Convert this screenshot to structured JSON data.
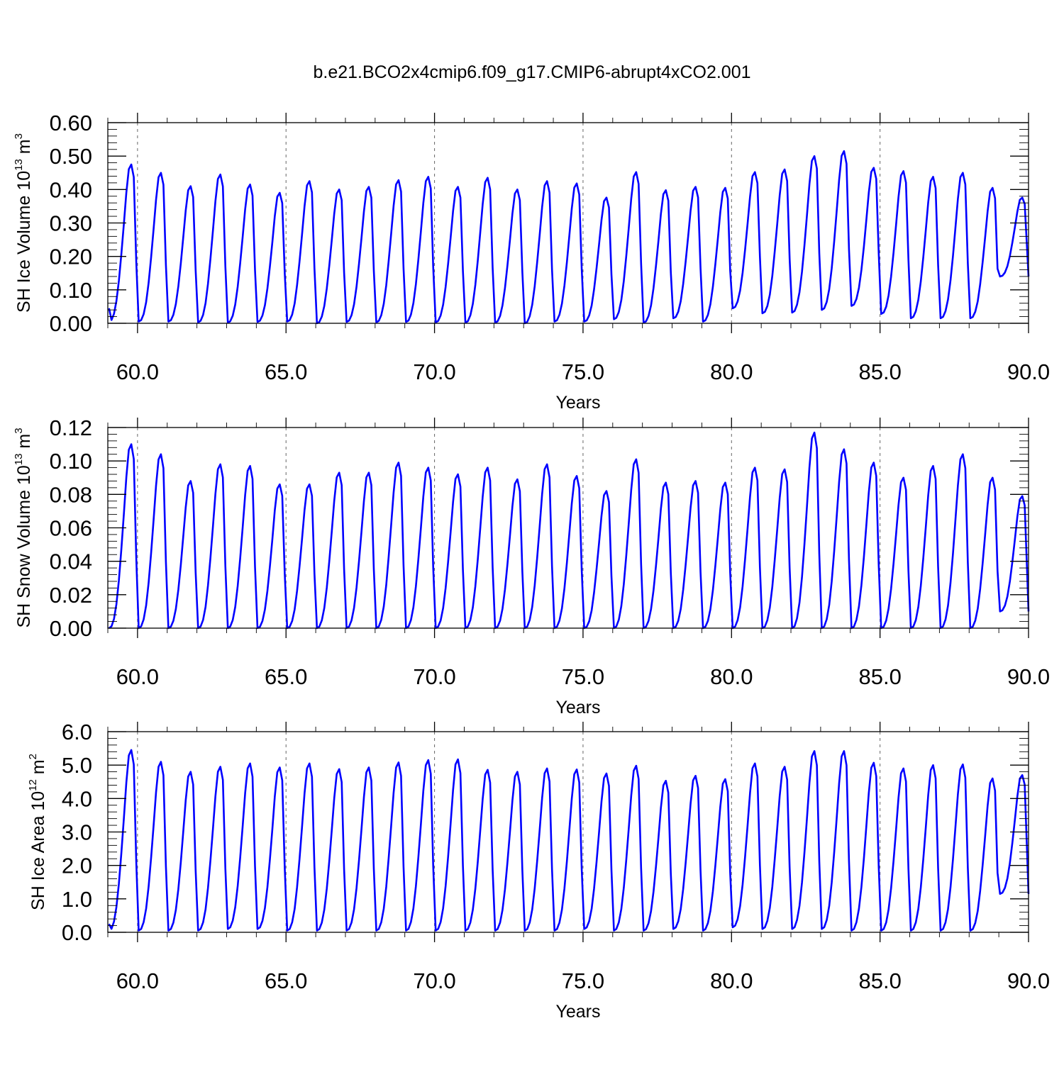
{
  "colors": {
    "series": "#0000ff",
    "axes": "#000000",
    "grid": "#666666"
  },
  "figure": {
    "title": "b.e21.BCO2x4cmip6.f09_g17.CMIP6-abrupt4xCO2.001"
  },
  "chart_data": [
    {
      "type": "line",
      "id": "ice-volume",
      "xlabel": "Years",
      "ylabel_parts": {
        "base": "SH Ice Volume 10",
        "exp1": "13",
        "mid": " m",
        "exp2": "3"
      },
      "xlim": [
        59.0,
        90.0
      ],
      "ylim": [
        0.0,
        0.6
      ],
      "x_ticks": [
        60,
        65,
        70,
        75,
        80,
        85,
        90
      ],
      "x_tick_labels": [
        "60.0",
        "65.0",
        "70.0",
        "75.0",
        "80.0",
        "85.0",
        "90.0"
      ],
      "y_ticks": [
        0.0,
        0.1,
        0.2,
        0.3,
        0.4,
        0.5,
        0.6
      ],
      "y_tick_labels": [
        "0.00",
        "0.10",
        "0.20",
        "0.30",
        "0.40",
        "0.50",
        "0.60"
      ],
      "grid_x": [
        60,
        65,
        70,
        75,
        80,
        85
      ],
      "series": [
        {
          "start_year": 59.04,
          "step_years": 0.08333,
          "annual_max": [
            0.475,
            0.45,
            0.41,
            0.445,
            0.415,
            0.39,
            0.425,
            0.4,
            0.408,
            0.428,
            0.438,
            0.408,
            0.435,
            0.4,
            0.425,
            0.418,
            0.376,
            0.452,
            0.398,
            0.408,
            0.405,
            0.452,
            0.46,
            0.5,
            0.515,
            0.465,
            0.455,
            0.438,
            0.45,
            0.405,
            0.376
          ],
          "annual_min": [
            0.005,
            0.005,
            0.005,
            0.003,
            0.002,
            0.004,
            0.005,
            0.0,
            0.004,
            0.003,
            0.004,
            0.003,
            0.002,
            0.002,
            0.0,
            0.005,
            0.005,
            0.012,
            0.002,
            0.015,
            0.005,
            0.045,
            0.03,
            0.032,
            0.04,
            0.052,
            0.028,
            0.015,
            0.015,
            0.015,
            0.14
          ],
          "start_value": 0.045,
          "end_value": 0.14
        }
      ]
    },
    {
      "type": "line",
      "id": "snow-volume",
      "xlabel": "Years",
      "ylabel_parts": {
        "base": "SH Snow Volume 10",
        "exp1": "13",
        "mid": " m",
        "exp2": "3"
      },
      "xlim": [
        59.0,
        90.0
      ],
      "ylim": [
        0.0,
        0.12
      ],
      "x_ticks": [
        60,
        65,
        70,
        75,
        80,
        85,
        90
      ],
      "x_tick_labels": [
        "60.0",
        "65.0",
        "70.0",
        "75.0",
        "80.0",
        "85.0",
        "90.0"
      ],
      "y_ticks": [
        0.0,
        0.02,
        0.04,
        0.06,
        0.08,
        0.1,
        0.12
      ],
      "y_tick_labels": [
        "0.00",
        "0.02",
        "0.04",
        "0.06",
        "0.08",
        "0.10",
        "0.12"
      ],
      "grid_x": [
        60,
        65,
        70,
        75,
        80,
        85
      ],
      "series": [
        {
          "start_year": 59.04,
          "step_years": 0.08333,
          "annual_max": [
            0.11,
            0.104,
            0.088,
            0.098,
            0.097,
            0.086,
            0.086,
            0.093,
            0.093,
            0.099,
            0.096,
            0.092,
            0.096,
            0.089,
            0.098,
            0.091,
            0.082,
            0.101,
            0.087,
            0.088,
            0.087,
            0.096,
            0.095,
            0.117,
            0.107,
            0.099,
            0.09,
            0.097,
            0.104,
            0.09,
            0.079
          ],
          "annual_min": [
            0.0,
            0.0,
            0.0,
            0.0,
            0.0,
            0.0,
            0.0,
            0.0,
            0.0,
            0.0,
            0.0,
            0.0,
            0.0,
            0.0,
            0.0,
            0.0,
            0.0,
            0.0,
            0.0,
            0.0,
            0.0,
            0.0,
            0.0,
            0.0,
            0.0,
            0.0,
            0.0,
            0.0,
            0.0,
            0.0,
            0.01
          ],
          "start_value": 0.0,
          "end_value": 0.01
        }
      ]
    },
    {
      "type": "line",
      "id": "ice-area",
      "xlabel": "Years",
      "ylabel_parts": {
        "base": "SH Ice Area 10",
        "exp1": "12",
        "mid": " m",
        "exp2": "2"
      },
      "xlim": [
        59.0,
        90.0
      ],
      "ylim": [
        0.0,
        6.0
      ],
      "x_ticks": [
        60,
        65,
        70,
        75,
        80,
        85,
        90
      ],
      "x_tick_labels": [
        "60.0",
        "65.0",
        "70.0",
        "75.0",
        "80.0",
        "85.0",
        "90.0"
      ],
      "y_ticks": [
        0,
        1,
        2,
        3,
        4,
        5,
        6
      ],
      "y_tick_labels": [
        "0.0",
        "1.0",
        "2.0",
        "3.0",
        "4.0",
        "5.0",
        "6.0"
      ],
      "grid_x": [
        60,
        65,
        70,
        75,
        80,
        85
      ],
      "series": [
        {
          "start_year": 59.04,
          "step_years": 0.08333,
          "annual_max": [
            5.45,
            5.1,
            4.8,
            4.95,
            5.05,
            4.93,
            5.05,
            4.88,
            4.93,
            5.08,
            5.15,
            5.17,
            4.86,
            4.8,
            4.9,
            4.87,
            4.75,
            4.98,
            4.53,
            4.68,
            4.58,
            5.05,
            4.95,
            5.42,
            5.42,
            5.07,
            4.9,
            5.0,
            5.02,
            4.6,
            4.7
          ],
          "annual_min": [
            0.05,
            0.05,
            0.05,
            0.05,
            0.1,
            0.1,
            0.05,
            0.05,
            0.05,
            0.05,
            0.05,
            0.05,
            0.05,
            0.05,
            0.05,
            0.05,
            0.1,
            0.05,
            0.05,
            0.1,
            0.05,
            0.15,
            0.1,
            0.1,
            0.1,
            0.05,
            0.05,
            0.05,
            0.05,
            0.05,
            1.15
          ],
          "start_value": 0.25,
          "end_value": 1.15
        }
      ]
    }
  ]
}
